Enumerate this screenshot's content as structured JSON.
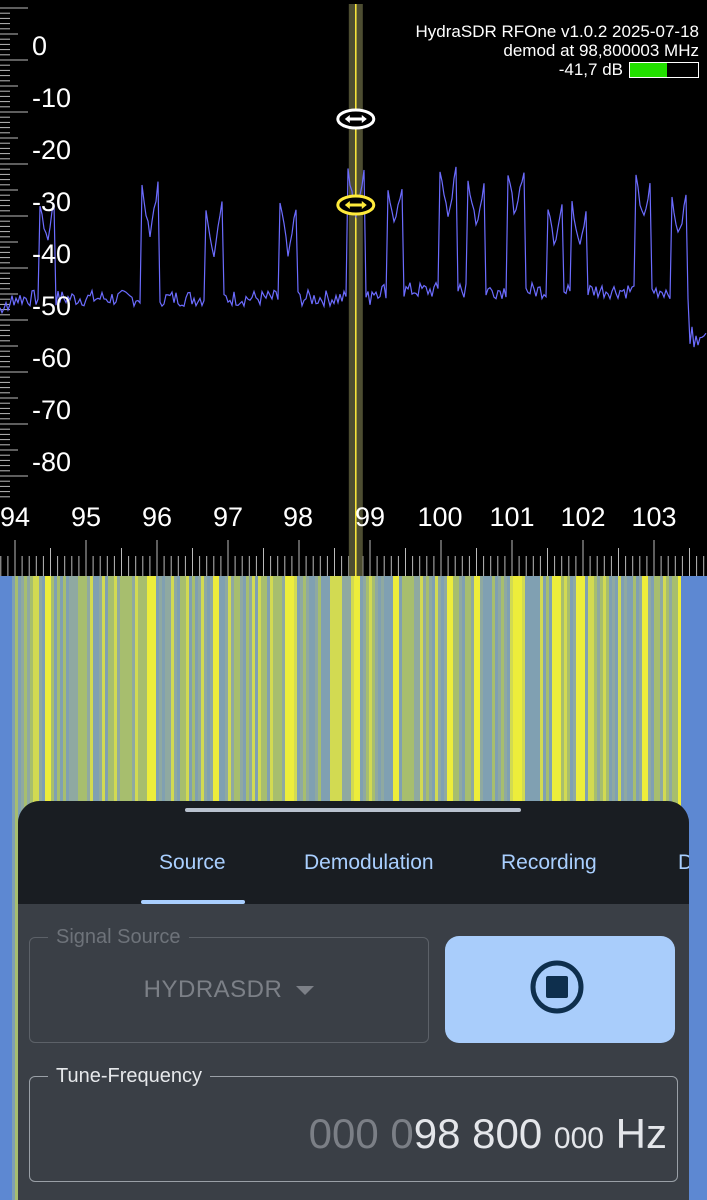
{
  "spectrum": {
    "db_labels": [
      "0",
      "-10",
      "-20",
      "-30",
      "-40",
      "-50",
      "-60",
      "-70",
      "-80"
    ],
    "freq_labels": [
      "94",
      "95",
      "96",
      "97",
      "98",
      "99",
      "100",
      "101",
      "102",
      "103"
    ],
    "info_line1": "HydraSDR RFOne v1.0.2 2025-07-18",
    "info_line2": "demod at 98,800003 MHz",
    "level_text": "-41,7 dB",
    "level_fraction": 0.55,
    "colors": {
      "trace": "#6c6cff",
      "marker": "#ffeb3b",
      "level": "#22e000"
    }
  },
  "sheet": {
    "tabs": [
      {
        "label": "Source",
        "active": true
      },
      {
        "label": "Demodulation",
        "active": false
      },
      {
        "label": "Recording",
        "active": false
      },
      {
        "label": "D",
        "active": false
      }
    ],
    "signal_source": {
      "legend": "Signal Source",
      "value": "HYDRASDR"
    },
    "start_stop": {
      "icon": "stop-circle-icon"
    },
    "tune_frequency": {
      "legend": "Tune-Frequency",
      "dim_part": "000 0",
      "main_part": "98 800",
      "small_part": "000",
      "unit": "Hz"
    },
    "colors": {
      "accent": "#a9cfff",
      "button": "#a9cdfb",
      "sheet_bg": "#3a3f46",
      "header_bg": "#191d22"
    }
  }
}
